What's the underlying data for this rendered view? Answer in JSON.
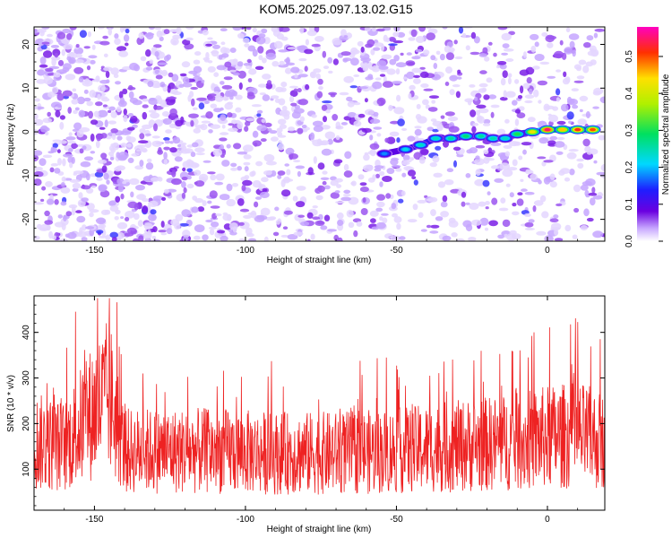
{
  "title": "KOM5.2025.097.13.02.G15",
  "colorbar": {
    "label": "Normalized spectral amplitude",
    "range": [
      0,
      0.58
    ],
    "ticks": [
      "0.0",
      "0.1",
      "0.2",
      "0.3",
      "0.4",
      "0.5"
    ]
  },
  "chart_data": [
    {
      "type": "heatmap",
      "xlabel": "Height of straight line (km)",
      "ylabel": "Frequency (Hz)",
      "xlim": [
        -170,
        19
      ],
      "ylim": [
        -25,
        24
      ],
      "xticks": [
        "-150",
        "-100",
        "-50",
        "0"
      ],
      "yticks": [
        "-20",
        "-10",
        "0",
        "10",
        "20"
      ],
      "ridge": {
        "x": [
          -54,
          -47,
          -42,
          -37,
          -32,
          -27,
          -22,
          -18,
          -14,
          -10,
          -5,
          0,
          5,
          10,
          15
        ],
        "y": [
          -5,
          -4,
          -3,
          -1.5,
          -1.5,
          -1,
          -1,
          -1.5,
          -1.5,
          -0.5,
          0,
          0.5,
          0.5,
          0.5,
          0.5
        ],
        "amplitude": [
          0.18,
          0.22,
          0.24,
          0.24,
          0.26,
          0.28,
          0.26,
          0.25,
          0.24,
          0.3,
          0.42,
          0.55,
          0.45,
          0.52,
          0.5
        ]
      },
      "scale": "Normalized spectral amplitude"
    },
    {
      "type": "line",
      "xlabel": "Height of straight line (km)",
      "ylabel": "SNR (10 * v/v)",
      "xlim": [
        -170,
        19
      ],
      "ylim": [
        10,
        480
      ],
      "xticks": [
        "-150",
        "-100",
        "-50",
        "0"
      ],
      "yticks": [
        "100",
        "200",
        "300",
        "400"
      ],
      "color": "#ee2222",
      "series": [
        {
          "x": [
            -170,
            -160,
            -150,
            -145,
            -140,
            -130,
            -110,
            -90,
            -70,
            -50,
            -30,
            -10,
            0,
            10,
            19
          ],
          "y": [
            160,
            150,
            230,
            260,
            140,
            140,
            140,
            135,
            135,
            140,
            150,
            160,
            170,
            175,
            160
          ]
        }
      ]
    }
  ]
}
